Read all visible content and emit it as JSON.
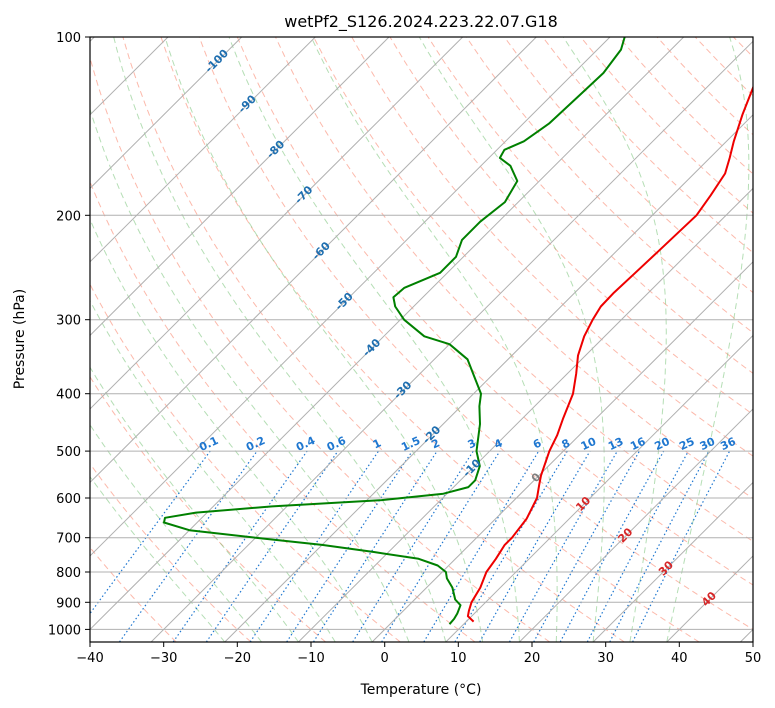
{
  "chart_data": {
    "type": "line",
    "subtype": "skew-t log-p",
    "title": "wetPf2_S126.2024.223.22.07.G18",
    "xlabel": "Temperature (°C)",
    "ylabel": "Pressure (hPa)",
    "xlim": [
      -40,
      50
    ],
    "ylim": [
      1050,
      100
    ],
    "yscale": "log",
    "xticks": [
      -40,
      -30,
      -20,
      -10,
      0,
      10,
      20,
      30,
      40,
      50
    ],
    "yticks": [
      100,
      200,
      300,
      400,
      500,
      600,
      700,
      800,
      900,
      1000
    ],
    "grid": true,
    "skew_isotherm_labels": [
      {
        "label": "-100",
        "value": -100
      },
      {
        "label": "-90",
        "value": -90
      },
      {
        "label": "-80",
        "value": -80
      },
      {
        "label": "-70",
        "value": -70
      },
      {
        "label": "-60",
        "value": -60
      },
      {
        "label": "-50",
        "value": -50
      },
      {
        "label": "-40",
        "value": -40
      },
      {
        "label": "-30",
        "value": -30
      },
      {
        "label": "-20",
        "value": -20
      },
      {
        "label": "-10",
        "value": -10
      },
      {
        "label": "0",
        "value": 0
      },
      {
        "label": "10",
        "value": 10
      },
      {
        "label": "20",
        "value": 20
      },
      {
        "label": "30",
        "value": 30
      },
      {
        "label": "40",
        "value": 40
      }
    ],
    "mixing_ratio_labels": [
      "0.1",
      "0.2",
      "0.4",
      "0.6",
      "1",
      "1.5",
      "2",
      "3",
      "4",
      "6",
      "8",
      "10",
      "13",
      "16",
      "20",
      "25",
      "30",
      "36"
    ],
    "colors": {
      "temperature": "#ee0000",
      "dewpoint": "#008000",
      "dry_adiabat": "#fa8066",
      "moist_adiabat": "#78c378",
      "mixing_ratio": "#1f77d0",
      "isotherm_label_cold": "#1f6fb0",
      "isotherm_label_warm": "#d62728",
      "isotherm_label_zero": "#808080",
      "grid": "#b0b0b0"
    },
    "series": [
      {
        "name": "",
        "color": "#ee0000",
        "points": [
          {
            "p": 970,
            "t": 11.0
          },
          {
            "p": 950,
            "t": 9.5
          },
          {
            "p": 930,
            "t": 8.9
          },
          {
            "p": 900,
            "t": 8.1
          },
          {
            "p": 850,
            "t": 7.3
          },
          {
            "p": 800,
            "t": 6.0
          },
          {
            "p": 760,
            "t": 5.5
          },
          {
            "p": 720,
            "t": 4.8
          },
          {
            "p": 700,
            "t": 4.8
          },
          {
            "p": 650,
            "t": 4.2
          },
          {
            "p": 600,
            "t": 2.8
          },
          {
            "p": 570,
            "t": 1.3
          },
          {
            "p": 550,
            "t": 0.3
          },
          {
            "p": 520,
            "t": -1.0
          },
          {
            "p": 500,
            "t": -1.9
          },
          {
            "p": 470,
            "t": -3.0
          },
          {
            "p": 440,
            "t": -4.5
          },
          {
            "p": 400,
            "t": -6.5
          },
          {
            "p": 370,
            "t": -8.8
          },
          {
            "p": 345,
            "t": -11.0
          },
          {
            "p": 320,
            "t": -12.8
          },
          {
            "p": 300,
            "t": -13.9
          },
          {
            "p": 285,
            "t": -14.6
          },
          {
            "p": 270,
            "t": -14.7
          },
          {
            "p": 250,
            "t": -14.5
          },
          {
            "p": 230,
            "t": -14.3
          },
          {
            "p": 200,
            "t": -14.0
          },
          {
            "p": 185,
            "t": -14.8
          },
          {
            "p": 170,
            "t": -15.8
          },
          {
            "p": 160,
            "t": -17.3
          },
          {
            "p": 150,
            "t": -19.0
          },
          {
            "p": 135,
            "t": -21.5
          },
          {
            "p": 120,
            "t": -24.0
          },
          {
            "p": 110,
            "t": -26.8
          },
          {
            "p": 100,
            "t": -29.0
          }
        ]
      },
      {
        "name": "",
        "color": "#008000",
        "points": [
          {
            "p": 980,
            "t": 8.1
          },
          {
            "p": 960,
            "t": 8.0
          },
          {
            "p": 940,
            "t": 7.7
          },
          {
            "p": 910,
            "t": 7.0
          },
          {
            "p": 890,
            "t": 5.5
          },
          {
            "p": 850,
            "t": 3.5
          },
          {
            "p": 820,
            "t": 1.5
          },
          {
            "p": 800,
            "t": 0.5
          },
          {
            "p": 780,
            "t": -1.5
          },
          {
            "p": 760,
            "t": -5.0
          },
          {
            "p": 740,
            "t": -12.0
          },
          {
            "p": 720,
            "t": -20.0
          },
          {
            "p": 700,
            "t": -30.0
          },
          {
            "p": 680,
            "t": -40.0
          },
          {
            "p": 660,
            "t": -44.5
          },
          {
            "p": 648,
            "t": -45.0
          },
          {
            "p": 635,
            "t": -41.5
          },
          {
            "p": 620,
            "t": -32.0
          },
          {
            "p": 605,
            "t": -18.0
          },
          {
            "p": 590,
            "t": -10.5
          },
          {
            "p": 575,
            "t": -8.0
          },
          {
            "p": 560,
            "t": -8.0
          },
          {
            "p": 530,
            "t": -9.3
          },
          {
            "p": 500,
            "t": -11.8
          },
          {
            "p": 450,
            "t": -15.0
          },
          {
            "p": 420,
            "t": -17.5
          },
          {
            "p": 400,
            "t": -19.0
          },
          {
            "p": 380,
            "t": -21.5
          },
          {
            "p": 350,
            "t": -25.5
          },
          {
            "p": 330,
            "t": -30.0
          },
          {
            "p": 320,
            "t": -34.5
          },
          {
            "p": 300,
            "t": -39.5
          },
          {
            "p": 285,
            "t": -42.5
          },
          {
            "p": 275,
            "t": -44.0
          },
          {
            "p": 265,
            "t": -43.8
          },
          {
            "p": 250,
            "t": -41.0
          },
          {
            "p": 235,
            "t": -41.0
          },
          {
            "p": 220,
            "t": -42.5
          },
          {
            "p": 205,
            "t": -42.5
          },
          {
            "p": 190,
            "t": -41.8
          },
          {
            "p": 175,
            "t": -43.0
          },
          {
            "p": 165,
            "t": -46.0
          },
          {
            "p": 160,
            "t": -48.5
          },
          {
            "p": 155,
            "t": -49.0
          },
          {
            "p": 150,
            "t": -47.5
          },
          {
            "p": 140,
            "t": -46.5
          },
          {
            "p": 125,
            "t": -46.2
          },
          {
            "p": 115,
            "t": -46.0
          },
          {
            "p": 105,
            "t": -46.8
          },
          {
            "p": 100,
            "t": -48.0
          }
        ]
      }
    ]
  }
}
